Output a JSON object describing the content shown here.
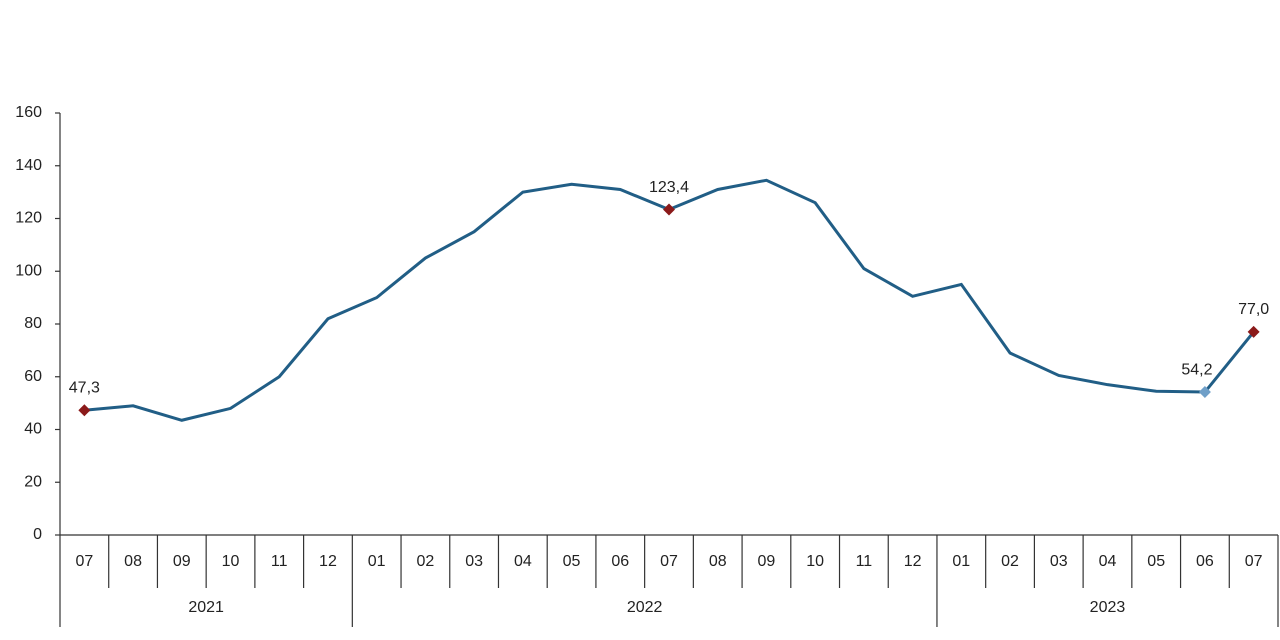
{
  "chart_data": {
    "type": "line",
    "groups": [
      {
        "label": "2021",
        "categories": [
          "07",
          "08",
          "09",
          "10",
          "11",
          "12"
        ]
      },
      {
        "label": "2022",
        "categories": [
          "01",
          "02",
          "03",
          "04",
          "05",
          "06",
          "07",
          "08",
          "09",
          "10",
          "11",
          "12"
        ]
      },
      {
        "label": "2023",
        "categories": [
          "01",
          "02",
          "03",
          "04",
          "05",
          "06",
          "07"
        ]
      }
    ],
    "values": [
      47.3,
      49,
      43.5,
      48,
      60,
      82,
      90,
      105,
      115,
      130,
      133,
      131,
      123.4,
      131,
      134.5,
      126,
      101,
      90.5,
      95,
      69,
      60.5,
      57,
      54.5,
      54.2,
      77.0
    ],
    "value_labels": [
      "47,3",
      null,
      null,
      null,
      null,
      null,
      null,
      null,
      null,
      null,
      null,
      null,
      "123,4",
      null,
      null,
      null,
      null,
      null,
      null,
      null,
      null,
      null,
      null,
      "54,2",
      "77,0"
    ],
    "marker_colors": [
      "#8b1a1a",
      null,
      null,
      null,
      null,
      null,
      null,
      null,
      null,
      null,
      null,
      null,
      "#8b1a1a",
      null,
      null,
      null,
      null,
      null,
      null,
      null,
      null,
      null,
      null,
      "#6f9fc8",
      "#8b1a1a"
    ],
    "color": "#215e86",
    "ylim": [
      0,
      160
    ],
    "yticks": [
      0,
      20,
      40,
      60,
      80,
      100,
      120,
      140,
      160
    ]
  }
}
